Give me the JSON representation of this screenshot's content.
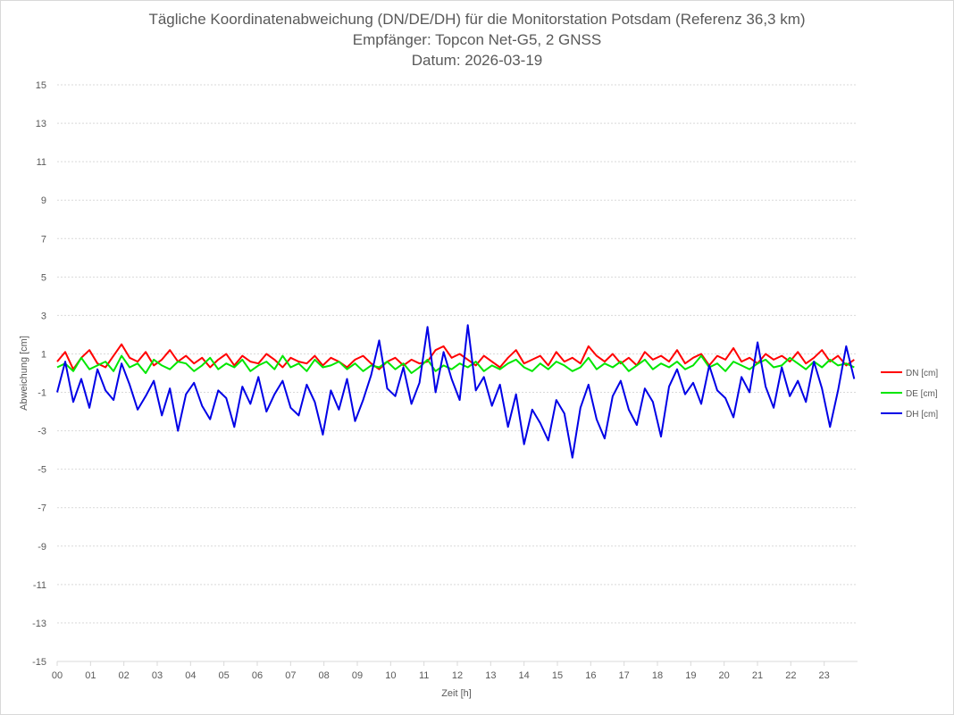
{
  "chart_data": {
    "type": "line",
    "title": "Tägliche Koordinatenabweichung (DN/DE/DH) für die Monitorstation Potsdam (Referenz 36,3 km)",
    "subtitle1": "Empfänger: Topcon Net-G5, 2 GNSS",
    "subtitle2": "Datum: 2026-03-19",
    "xlabel": "Zeit [h]",
    "ylabel": "Abweichung [cm]",
    "xlim": [
      0,
      24
    ],
    "ylim": [
      -15,
      15
    ],
    "x_ticks": [
      "00",
      "01",
      "02",
      "03",
      "04",
      "05",
      "06",
      "07",
      "08",
      "09",
      "10",
      "11",
      "12",
      "13",
      "14",
      "15",
      "16",
      "17",
      "18",
      "19",
      "20",
      "21",
      "22",
      "23"
    ],
    "y_ticks": [
      "15",
      "13",
      "11",
      "9",
      "7",
      "5",
      "3",
      "1",
      "-1",
      "-3",
      "-5",
      "-7",
      "-9",
      "-11",
      "-13",
      "-15"
    ],
    "grid": "horizontal dotted",
    "legend_position": "right",
    "series": [
      {
        "name": "DN [cm]",
        "color": "#ff0000",
        "values": [
          0.6,
          1.1,
          0.2,
          0.8,
          1.2,
          0.5,
          0.3,
          0.9,
          1.5,
          0.8,
          0.6,
          1.1,
          0.4,
          0.7,
          1.2,
          0.6,
          0.9,
          0.5,
          0.8,
          0.3,
          0.7,
          1.0,
          0.4,
          0.9,
          0.6,
          0.5,
          1.0,
          0.7,
          0.3,
          0.8,
          0.6,
          0.5,
          0.9,
          0.4,
          0.8,
          0.6,
          0.3,
          0.7,
          0.9,
          0.5,
          0.2,
          0.6,
          0.8,
          0.4,
          0.7,
          0.5,
          0.6,
          1.2,
          1.4,
          0.8,
          1.0,
          0.7,
          0.4,
          0.9,
          0.6,
          0.3,
          0.8,
          1.2,
          0.5,
          0.7,
          0.9,
          0.4,
          1.1,
          0.6,
          0.8,
          0.5,
          1.4,
          0.9,
          0.6,
          1.0,
          0.5,
          0.8,
          0.4,
          1.1,
          0.7,
          0.9,
          0.6,
          1.2,
          0.5,
          0.8,
          1.0,
          0.4,
          0.9,
          0.7,
          1.3,
          0.6,
          0.8,
          0.5,
          1.0,
          0.7,
          0.9,
          0.6,
          1.1,
          0.5,
          0.8,
          1.2,
          0.6,
          0.9,
          0.4,
          0.7
        ],
        "note": "values sampled uniformly across 00-24 h"
      },
      {
        "name": "DE [cm]",
        "color": "#00e600",
        "values": [
          0.3,
          0.5,
          0.1,
          0.8,
          0.2,
          0.4,
          0.6,
          0.1,
          0.9,
          0.3,
          0.5,
          0.0,
          0.7,
          0.4,
          0.2,
          0.6,
          0.5,
          0.1,
          0.4,
          0.8,
          0.2,
          0.5,
          0.3,
          0.7,
          0.1,
          0.4,
          0.6,
          0.2,
          0.9,
          0.3,
          0.5,
          0.1,
          0.7,
          0.3,
          0.4,
          0.6,
          0.2,
          0.5,
          0.1,
          0.4,
          0.3,
          0.6,
          0.2,
          0.5,
          0.0,
          0.3,
          0.7,
          0.1,
          0.4,
          0.2,
          0.5,
          0.3,
          0.6,
          0.1,
          0.4,
          0.2,
          0.5,
          0.7,
          0.3,
          0.1,
          0.5,
          0.2,
          0.6,
          0.4,
          0.1,
          0.3,
          0.8,
          0.2,
          0.5,
          0.3,
          0.6,
          0.1,
          0.4,
          0.7,
          0.2,
          0.5,
          0.3,
          0.6,
          0.2,
          0.4,
          0.9,
          0.3,
          0.5,
          0.1,
          0.6,
          0.4,
          0.2,
          0.5,
          0.7,
          0.3,
          0.4,
          0.8,
          0.5,
          0.2,
          0.6,
          0.3,
          0.7,
          0.4,
          0.5,
          0.3
        ]
      },
      {
        "name": "DH [cm]",
        "color": "#0000e6",
        "values": [
          -1.0,
          0.6,
          -1.5,
          -0.3,
          -1.8,
          0.2,
          -0.9,
          -1.4,
          0.5,
          -0.6,
          -1.9,
          -1.2,
          -0.4,
          -2.2,
          -0.8,
          -3.0,
          -1.1,
          -0.5,
          -1.7,
          -2.4,
          -0.9,
          -1.3,
          -2.8,
          -0.7,
          -1.6,
          -0.2,
          -2.0,
          -1.1,
          -0.4,
          -1.8,
          -2.2,
          -0.6,
          -1.5,
          -3.2,
          -0.9,
          -1.9,
          -0.3,
          -2.5,
          -1.4,
          -0.1,
          1.7,
          -0.8,
          -1.2,
          0.3,
          -1.6,
          -0.5,
          2.4,
          -1.0,
          1.1,
          -0.3,
          -1.4,
          2.5,
          -0.9,
          -0.2,
          -1.7,
          -0.6,
          -2.8,
          -1.1,
          -3.7,
          -1.9,
          -2.6,
          -3.5,
          -1.4,
          -2.1,
          -4.4,
          -1.8,
          -0.6,
          -2.4,
          -3.4,
          -1.2,
          -0.4,
          -1.9,
          -2.7,
          -0.8,
          -1.5,
          -3.3,
          -0.7,
          0.2,
          -1.1,
          -0.5,
          -1.6,
          0.4,
          -0.9,
          -1.3,
          -2.3,
          -0.2,
          -1.0,
          1.6,
          -0.7,
          -1.8,
          0.3,
          -1.2,
          -0.4,
          -1.5,
          0.6,
          -0.8,
          -2.8,
          -0.9,
          1.4,
          -0.3
        ]
      }
    ]
  }
}
